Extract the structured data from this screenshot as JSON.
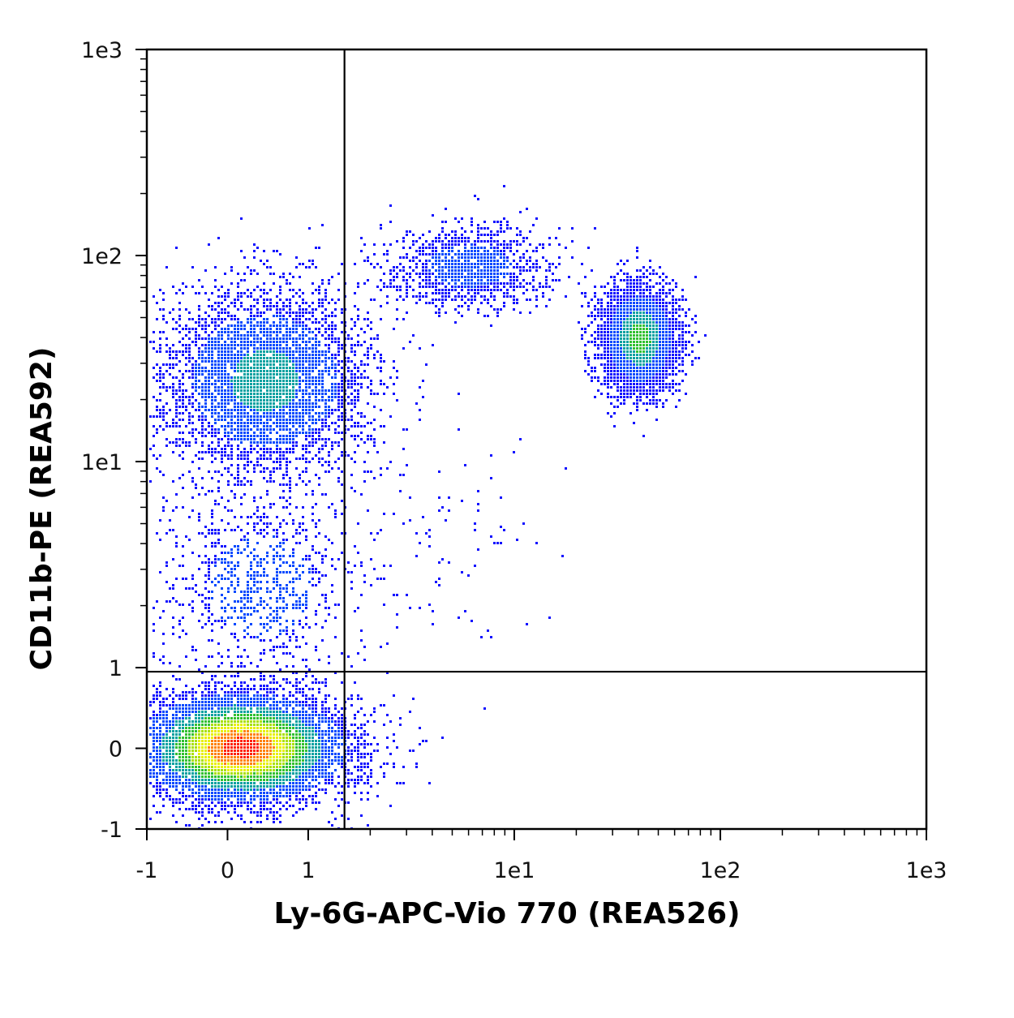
{
  "chart_data": {
    "type": "scatter",
    "plot_style": "density-colored flow cytometry dot plot",
    "xlabel": "Ly-6G-APC-Vio 770 (REA526)",
    "ylabel": "CD11b-PE (REA592)",
    "x_scale": "hlog",
    "y_scale": "hlog",
    "xlim": [
      -1,
      1000
    ],
    "ylim": [
      -1,
      1000
    ],
    "x_ticks": [
      {
        "value": -1,
        "label": "-1"
      },
      {
        "value": 0,
        "label": "0"
      },
      {
        "value": 1,
        "label": "1"
      },
      {
        "value": 10,
        "label": "1e1"
      },
      {
        "value": 100,
        "label": "1e2"
      },
      {
        "value": 1000,
        "label": "1e3"
      }
    ],
    "y_ticks": [
      {
        "value": -1,
        "label": "-1"
      },
      {
        "value": 0,
        "label": "0"
      },
      {
        "value": 1,
        "label": "1"
      },
      {
        "value": 10,
        "label": "1e1"
      },
      {
        "value": 100,
        "label": "1e2"
      },
      {
        "value": 1000,
        "label": "1e3"
      }
    ],
    "quadrant_gate": {
      "x": 1.5,
      "y": 0.95
    },
    "density_colors": [
      "#1010ff",
      "#0048ff",
      "#00a0a0",
      "#30c030",
      "#a8e000",
      "#e8f000",
      "#ff8000",
      "#ff2000"
    ],
    "populations": [
      {
        "x_center": 0.15,
        "y_center": 0.02,
        "x_spread": 0.58,
        "y_spread": 0.3,
        "count": 7000,
        "peak_level": 7
      },
      {
        "x_center": 0.45,
        "y_center": 25,
        "x_spread": 0.55,
        "y_spread": 0.5,
        "count": 4200,
        "peak_level": 2
      },
      {
        "x_center": 40,
        "y_center": 40,
        "x_spread": 0.2,
        "y_spread": 0.28,
        "count": 4200,
        "peak_level": 3
      },
      {
        "x_center": 6,
        "y_center": 90,
        "x_spread": 0.45,
        "y_spread": 0.22,
        "count": 1200,
        "peak_level": 1
      },
      {
        "x_center": 0.4,
        "y_center": 2.5,
        "x_spread": 0.55,
        "y_spread": 0.55,
        "count": 900,
        "peak_level": 1
      },
      {
        "x_center": 5,
        "y_center": 5,
        "x_spread": 0.55,
        "y_spread": 0.65,
        "count": 90,
        "peak_level": 0
      }
    ]
  }
}
